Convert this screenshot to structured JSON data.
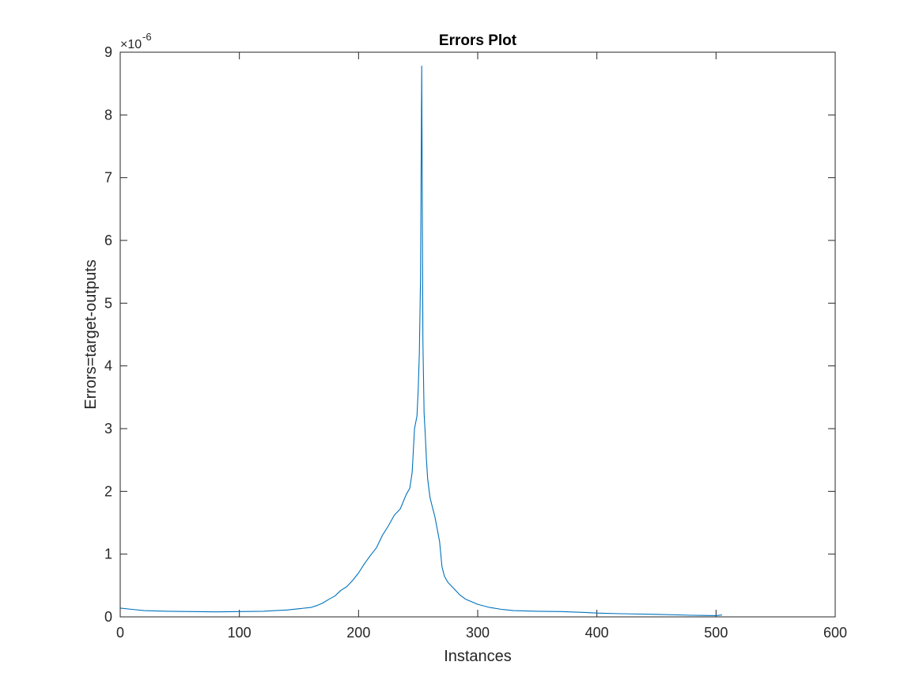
{
  "chart_data": {
    "type": "line",
    "title": "Errors Plot",
    "xlabel": "Instances",
    "ylabel": "Errors=target-outputs",
    "y_exponent_label": "×10",
    "y_exponent": "-6",
    "xlim": [
      0,
      600
    ],
    "ylim": [
      0,
      9
    ],
    "x_ticks": [
      "0",
      "100",
      "200",
      "300",
      "400",
      "500",
      "600"
    ],
    "y_ticks": [
      "0",
      "1",
      "2",
      "3",
      "4",
      "5",
      "6",
      "7",
      "8",
      "9"
    ],
    "grid": false,
    "color": "#0072BD",
    "series": [
      {
        "x": [
          0,
          10,
          20,
          40,
          60,
          80,
          100,
          120,
          130,
          140,
          150,
          160,
          165,
          170,
          175,
          180,
          185,
          190,
          195,
          200,
          205,
          210,
          215,
          220,
          225,
          230,
          235,
          240,
          243,
          245,
          247,
          249,
          250,
          251,
          252,
          253,
          254,
          255,
          256,
          257,
          258,
          260,
          262,
          264,
          266,
          268,
          270,
          272,
          275,
          280,
          285,
          290,
          300,
          310,
          320,
          330,
          350,
          370,
          390,
          400,
          420,
          450,
          480,
          500,
          505
        ],
        "y": [
          0.14,
          0.12,
          0.1,
          0.09,
          0.085,
          0.08,
          0.085,
          0.09,
          0.1,
          0.11,
          0.13,
          0.15,
          0.18,
          0.22,
          0.28,
          0.33,
          0.42,
          0.48,
          0.58,
          0.7,
          0.85,
          0.98,
          1.1,
          1.3,
          1.45,
          1.62,
          1.72,
          1.95,
          2.05,
          2.3,
          3.0,
          3.2,
          3.6,
          4.2,
          5.4,
          8.78,
          4.4,
          3.25,
          2.9,
          2.5,
          2.2,
          1.9,
          1.75,
          1.6,
          1.4,
          1.2,
          0.8,
          0.65,
          0.55,
          0.45,
          0.35,
          0.28,
          0.2,
          0.15,
          0.12,
          0.1,
          0.09,
          0.085,
          0.07,
          0.06,
          0.05,
          0.04,
          0.025,
          0.02,
          0.03
        ]
      }
    ]
  }
}
